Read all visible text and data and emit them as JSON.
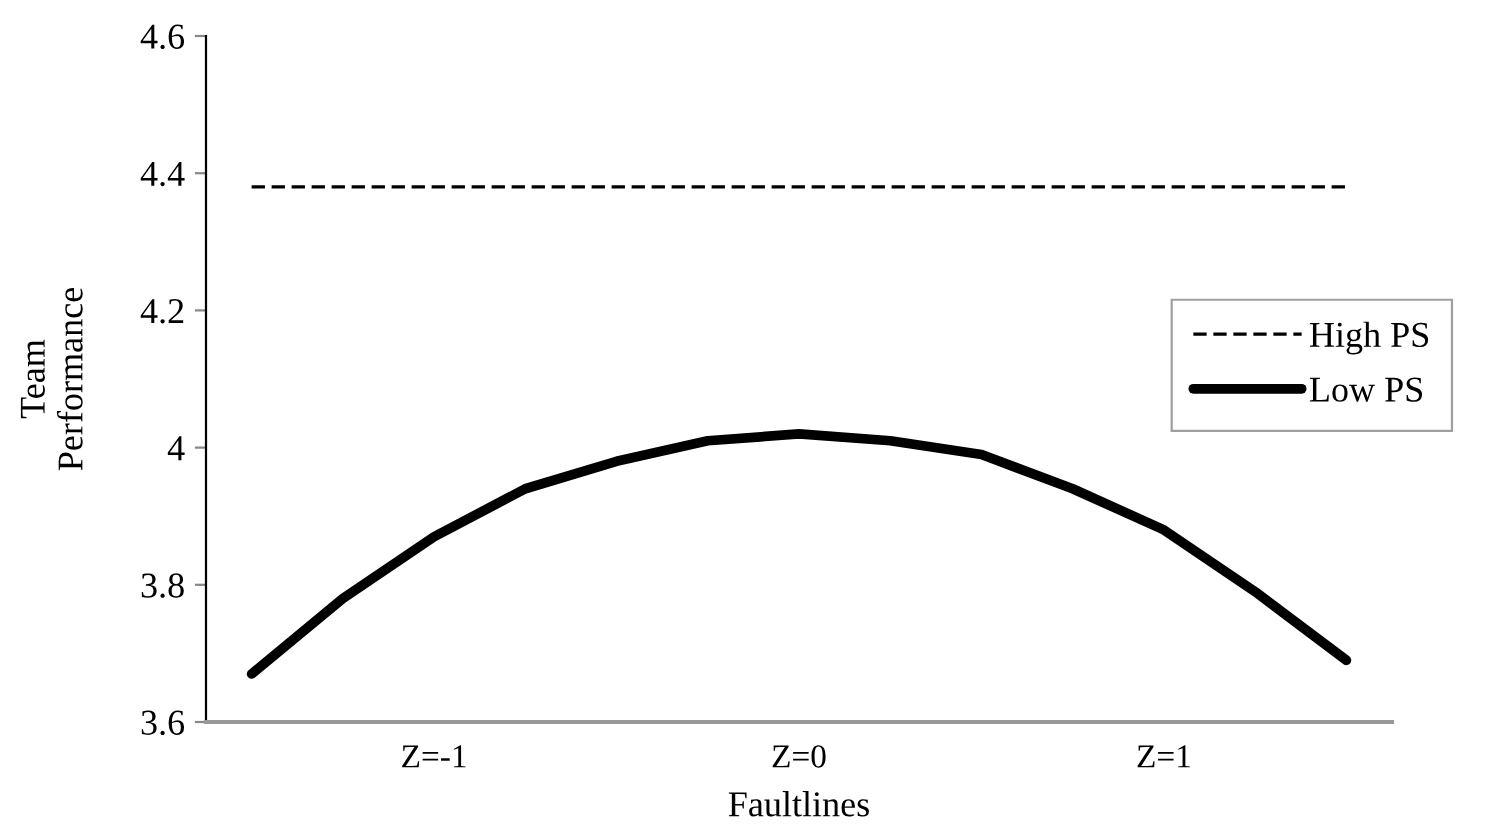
{
  "chart_data": {
    "type": "line",
    "xlabel": "Faultlines",
    "ylabel": "Team\nPerformance",
    "categories": [
      null,
      null,
      "Z=-1",
      null,
      null,
      null,
      "Z=0",
      null,
      null,
      null,
      "Z=1",
      null,
      null
    ],
    "series": [
      {
        "name": "High PS",
        "color": "#000000",
        "line_style": "dashed",
        "values": [
          4.38,
          4.38,
          4.38,
          4.38,
          4.38,
          4.38,
          4.38,
          4.38,
          4.38,
          4.38,
          4.38,
          4.38,
          4.38
        ]
      },
      {
        "name": "Low PS",
        "color": "#000000",
        "line_style": "solid",
        "values": [
          3.67,
          3.78,
          3.87,
          3.94,
          3.98,
          4.01,
          4.02,
          4.01,
          3.99,
          3.94,
          3.88,
          3.79,
          3.69
        ]
      }
    ],
    "ylim": [
      3.6,
      4.6
    ],
    "yticks": [
      3.6,
      3.8,
      {
        "value": 4,
        "label": "4"
      },
      4.2,
      4.4,
      4.6
    ],
    "grid": false,
    "legend": "right",
    "marker": "none"
  }
}
